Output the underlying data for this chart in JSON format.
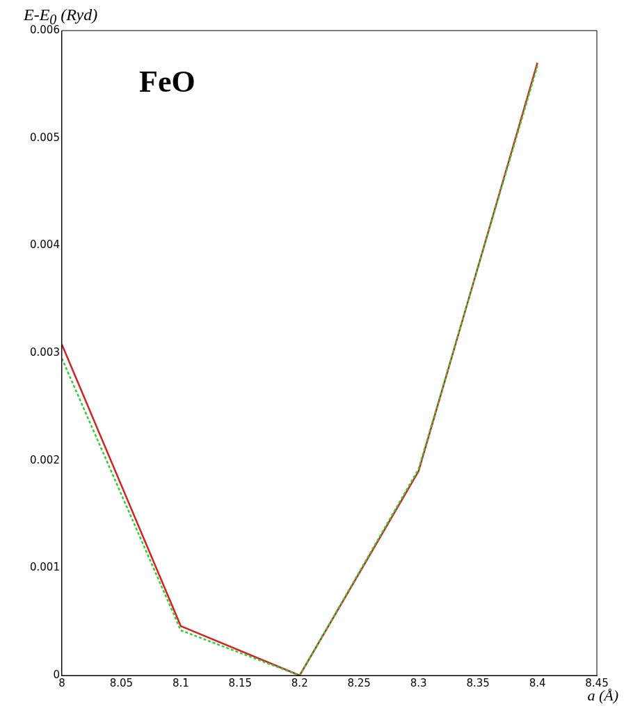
{
  "chart_data": {
    "type": "line",
    "title": "FeO",
    "xlabel": "a (Å)",
    "ylabel": "E-E$_{0}$ (Ryd)",
    "x": [
      8,
      8.1,
      8.2,
      8.3,
      8.4
    ],
    "series": [
      {
        "color": "#d42020",
        "line_style": "solid",
        "values": [
          0.00308,
          0.00046,
          0,
          0.0019,
          0.0057
        ]
      },
      {
        "color": "#33cc33",
        "line_style": "dashed",
        "values": [
          0.00295,
          0.00042,
          0,
          0.00192,
          0.00567
        ]
      }
    ],
    "xlim": [
      8,
      8.45
    ],
    "xticks": [
      8,
      8.05,
      8.1,
      8.15,
      8.2,
      8.25,
      8.3,
      8.35,
      8.4,
      8.45
    ],
    "ylim": [
      0,
      0.006
    ],
    "yticks": [
      0,
      0.001,
      0.002,
      0.003,
      0.004,
      0.005,
      0.006
    ],
    "grid": false,
    "legend": false,
    "marker": "none"
  }
}
